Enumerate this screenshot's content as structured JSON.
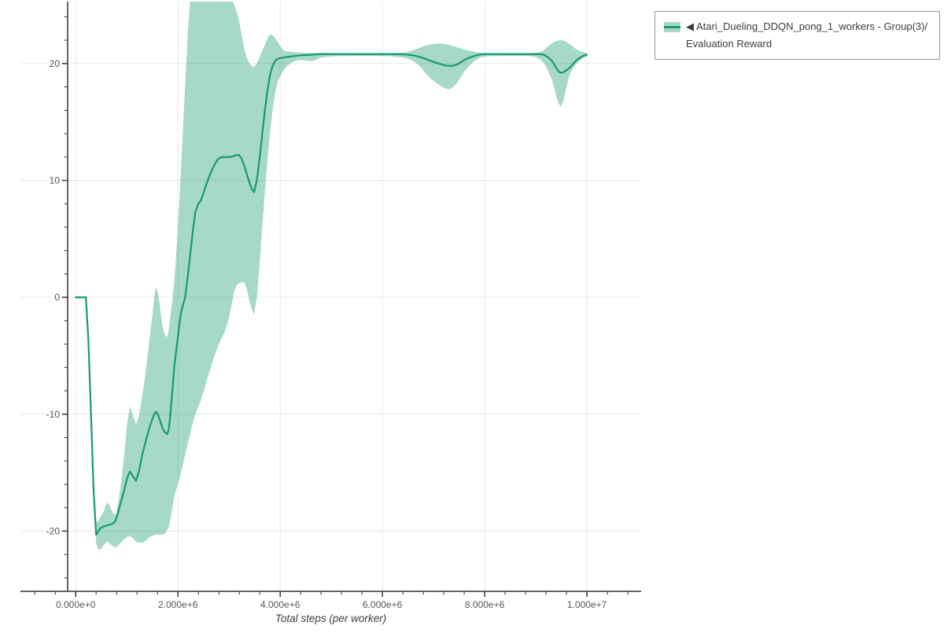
{
  "legend": {
    "collapse_icon": "◀",
    "label": "Atari_Dueling_DDQN_pong_1_workers - Group(3)/Evaluation Reward"
  },
  "chart_data": {
    "type": "line",
    "title": "",
    "xlabel": "Total steps (per worker)",
    "ylabel": "",
    "grid": true,
    "legend_position": "outside-top-right",
    "xlim": [
      -1080000,
      11060000
    ],
    "ylim": [
      -25.15,
      25.3
    ],
    "x_ticks": [
      {
        "value": 0,
        "label": "0.000e+0"
      },
      {
        "value": 2000000,
        "label": "2.000e+6"
      },
      {
        "value": 4000000,
        "label": "4.000e+6"
      },
      {
        "value": 6000000,
        "label": "6.000e+6"
      },
      {
        "value": 8000000,
        "label": "8.000e+6"
      },
      {
        "value": 10000000,
        "label": "1.000e+7"
      }
    ],
    "x_minor_step": 400000,
    "y_ticks": [
      {
        "value": -20,
        "label": "-20"
      },
      {
        "value": -10,
        "label": "-10"
      },
      {
        "value": 0,
        "label": "0"
      },
      {
        "value": 10,
        "label": "10"
      },
      {
        "value": 20,
        "label": "20"
      }
    ],
    "y_minor_step": 2,
    "style": {
      "line_color": "#179a6e",
      "band_color": "rgba(23,154,110,0.38)",
      "band_color_solid": "#a7d9c5",
      "grid_color": "#e8e8e8",
      "axis_color": "#333333",
      "tick_label_color": "#565656",
      "axis_title_color": "#3d3d3d",
      "legend_border_color": "#979797"
    },
    "series": [
      {
        "name": "Atari_Dueling_DDQN_pong_1_workers - Group(3)/Evaluation Reward",
        "x": [
          0,
          200000,
          300000,
          400000,
          470000,
          550000,
          620000,
          700000,
          780000,
          860000,
          950000,
          1060000,
          1180000,
          1300000,
          1420000,
          1500000,
          1570000,
          1640000,
          1700000,
          1790000,
          1840000,
          1930000,
          2000000,
          2060000,
          2140000,
          2250000,
          2340000,
          2450000,
          2600000,
          2780000,
          2900000,
          3000000,
          3100000,
          3190000,
          3300000,
          3400000,
          3490000,
          3600000,
          3700000,
          3800000,
          3900000,
          4050000,
          4200000,
          4400000,
          4600000,
          4800000,
          5000000,
          5400000,
          5800000,
          6200000,
          6500000,
          6700000,
          6900000,
          7100000,
          7300000,
          7450000,
          7600000,
          7800000,
          8000000,
          8400000,
          8800000,
          9100000,
          9300000,
          9490000,
          9650000,
          9800000,
          9950000,
          10000000
        ],
        "mean": [
          0,
          0,
          -10,
          -20.3,
          -19.8,
          -19.6,
          -19.5,
          -19.4,
          -19.1,
          -17.9,
          -16.5,
          -14.9,
          -15.7,
          -13.5,
          -11.5,
          -10.4,
          -9.8,
          -10.4,
          -11.2,
          -11.7,
          -10.6,
          -5.9,
          -3.4,
          -1.3,
          0,
          4,
          7.3,
          8.3,
          10.2,
          11.8,
          12,
          12,
          12.1,
          12.2,
          11.2,
          9.8,
          9,
          12,
          16,
          19,
          20.2,
          20.5,
          20.6,
          20.7,
          20.75,
          20.8,
          20.8,
          20.8,
          20.8,
          20.8,
          20.75,
          20.6,
          20.3,
          20,
          19.8,
          19.9,
          20.3,
          20.65,
          20.8,
          20.8,
          20.8,
          20.8,
          20.3,
          19.2,
          19.6,
          20.3,
          20.7,
          20.75
        ],
        "upper": [
          0,
          0,
          -9,
          -19.3,
          -18.9,
          -18.3,
          -17.5,
          -18.2,
          -18.6,
          -16.8,
          -13.5,
          -9.3,
          -10.9,
          -8.5,
          -4.5,
          -1.5,
          0.9,
          -0.5,
          -2.5,
          -3.4,
          -2,
          1.5,
          6,
          11,
          18,
          26,
          27,
          27,
          27,
          26.5,
          26,
          26,
          25,
          23.8,
          21.2,
          20,
          19.7,
          20.6,
          21.6,
          22.5,
          22.2,
          21.2,
          21,
          20.95,
          20.9,
          20.9,
          20.9,
          20.9,
          20.9,
          20.9,
          21,
          21.3,
          21.6,
          21.7,
          21.6,
          21.4,
          21.2,
          21,
          20.9,
          20.9,
          20.9,
          21,
          21.7,
          22,
          21.7,
          21.2,
          20.95,
          20.9
        ],
        "lower": [
          0,
          0,
          -11,
          -21,
          -21.6,
          -21.2,
          -20.9,
          -21.2,
          -21.4,
          -21.1,
          -20.7,
          -20.4,
          -20.9,
          -21,
          -20.6,
          -20.4,
          -20.3,
          -20.3,
          -20.3,
          -19.9,
          -19.3,
          -17,
          -16,
          -15,
          -13.5,
          -11.5,
          -10,
          -8.8,
          -6.6,
          -4.2,
          -3.1,
          -1.8,
          0.5,
          1.2,
          1.3,
          -0.3,
          -1.5,
          3,
          9,
          14,
          17.5,
          19.3,
          20,
          20.3,
          20.2,
          20.5,
          20.6,
          20.65,
          20.65,
          20.6,
          20.4,
          19.9,
          18.9,
          18.2,
          17.8,
          18.3,
          19.3,
          20.2,
          20.6,
          20.65,
          20.65,
          20.3,
          18.8,
          16.3,
          18.9,
          20,
          20.5,
          20.6
        ]
      }
    ]
  }
}
